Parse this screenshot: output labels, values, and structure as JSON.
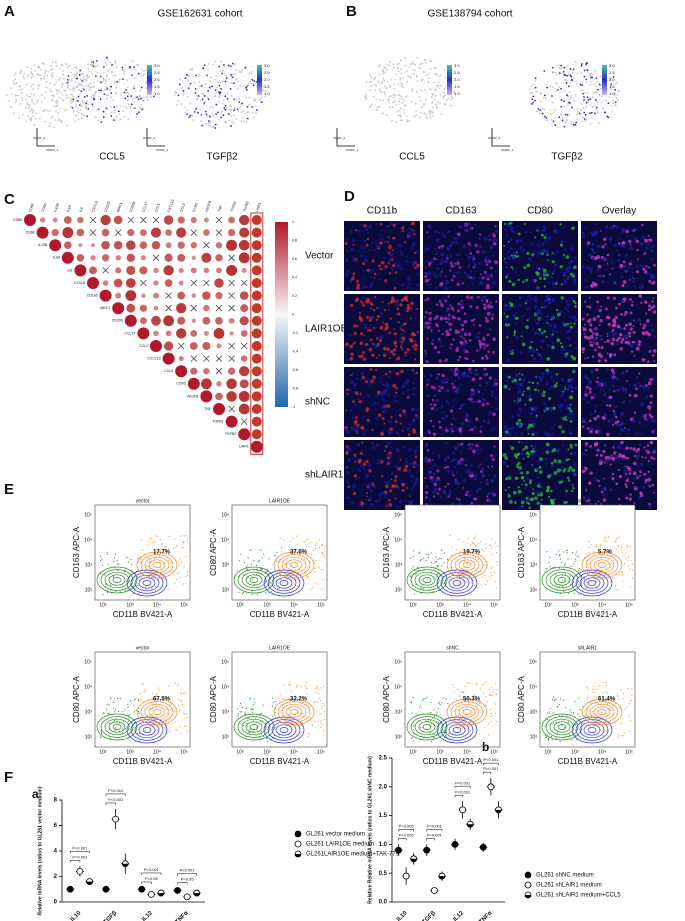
{
  "panels": [
    "A",
    "B",
    "C",
    "D",
    "E",
    "F"
  ],
  "umap": {
    "cohorts": [
      {
        "title": "GSE162631 cohort",
        "genes": [
          "CCL5",
          "TGFβ2"
        ]
      },
      {
        "title": "GSE138794 cohort",
        "genes": [
          "CCL5",
          "TGFβ2"
        ]
      }
    ],
    "scale": [
      "3.0",
      "2.5",
      "2.0",
      "1.5",
      "1.0"
    ],
    "axes": [
      "UMAP_1",
      "UMAP_2"
    ]
  },
  "corr": {
    "genes": [
      "CD86",
      "CD68",
      "IL10B",
      "IL1B",
      "IL6",
      "CXCL8",
      "CD163",
      "MRC1",
      "CD206",
      "CCL17",
      "CCL1",
      "CXCL13",
      "CCL5",
      "CCR5",
      "VEGFB",
      "TNF",
      "TGFB1",
      "TGFB2",
      "LAIR1"
    ],
    "colorbar": [
      "1",
      "0.8",
      "0.6",
      "0.4",
      "0.2",
      "0",
      "-0.2",
      "-0.4",
      "-0.6",
      "-0.8",
      "-1"
    ]
  },
  "if": {
    "columns": [
      "CD11b",
      "CD163",
      "CD80",
      "Overlay"
    ],
    "rows": [
      "Vector",
      "LAIR1OE",
      "shNC",
      "shLAIR1"
    ]
  },
  "flow": {
    "xlabel": "CD11B BV421-A",
    "ticks": [
      "10²",
      "10³",
      "10⁴",
      "10⁵"
    ],
    "plots": [
      {
        "title": "vector",
        "ylabel": "CD163 APC-A",
        "pct": "17.7%"
      },
      {
        "title": "LAIR1OE",
        "ylabel": "CD80 APC-A",
        "pct": "37.6%"
      },
      {
        "title": "shNC",
        "ylabel": "CD163 APC-A",
        "pct": "19.7%"
      },
      {
        "title": "shLAIR1",
        "ylabel": "CD163 APC-A",
        "pct": "5.7%"
      },
      {
        "title": "vector",
        "ylabel": "CD80 APC-A",
        "pct": "67.5%"
      },
      {
        "title": "LAIR1OE",
        "ylabel": "CD80 APC-A",
        "pct": "32.2%"
      },
      {
        "title": "shNC",
        "ylabel": "CD80 APC-A",
        "pct": "50.3%"
      },
      {
        "title": "shLAIR1",
        "ylabel": "CD80 APC-A",
        "pct": "61.4%"
      }
    ]
  },
  "chart_data": [
    {
      "type": "dot",
      "label": "a",
      "ylabel": "Relative mRNA levels (ratios to GL261 vector medium)",
      "categories": [
        "IL10",
        "TGFβ",
        "IL12",
        "TNFα"
      ],
      "series": [
        {
          "name": "GL261 vector medium",
          "marker": "filled",
          "color": "#000000",
          "values": [
            1,
            1,
            1,
            0.9
          ],
          "errors": [
            0.2,
            0.15,
            0.1,
            0.15
          ]
        },
        {
          "name": "GL261 LAIR1OE medium",
          "marker": "open",
          "color": "#000000",
          "values": [
            2.4,
            6.5,
            0.6,
            0.4
          ],
          "errors": [
            0.4,
            0.8,
            0.1,
            0.1
          ]
        },
        {
          "name": "GL261LAIR1OE medium+TAK-779",
          "marker": "half",
          "color": "#000000",
          "values": [
            1.6,
            3,
            0.7,
            0.7
          ],
          "errors": [
            0.2,
            0.8,
            0.1,
            0.1
          ]
        }
      ],
      "ylim": [
        0,
        8
      ],
      "yticks": [
        0,
        2,
        4,
        6,
        8
      ],
      "annotations": [
        "P=0.001",
        "P<0.001",
        "P<0.001",
        "P<0.001",
        "P<0.05",
        "P<0.001",
        "P<0.05",
        "P<0.001"
      ]
    },
    {
      "type": "dot",
      "label": "b",
      "ylabel": "Relative Relative mRNA levels (ratios to GL261 shNC medium)",
      "categories": [
        "IL10",
        "TGFβ",
        "IL12",
        "TNFα"
      ],
      "series": [
        {
          "name": "GL261 shNC medium",
          "marker": "filled",
          "color": "#000000",
          "values": [
            0.9,
            0.9,
            1,
            0.95
          ],
          "errors": [
            0.1,
            0.1,
            0.1,
            0.08
          ]
        },
        {
          "name": "GL261 shLAIR1 medium",
          "marker": "open",
          "color": "#000000",
          "values": [
            0.45,
            0.2,
            1.6,
            2
          ],
          "errors": [
            0.15,
            0.05,
            0.15,
            0.15
          ]
        },
        {
          "name": "GL261 shLAIR1 medium+CCL5",
          "marker": "half",
          "color": "#000000",
          "values": [
            0.75,
            0.45,
            1.35,
            1.6
          ],
          "errors": [
            0.1,
            0.08,
            0.1,
            0.15
          ]
        }
      ],
      "ylim": [
        0,
        2.5
      ],
      "yticks": [
        {
          "value": 0,
          "label": "0.0"
        },
        {
          "value": 0.5,
          "label": "0.5"
        },
        {
          "value": 1,
          "label": "1.0"
        },
        {
          "value": 1.5,
          "label": "1.5"
        },
        {
          "value": 2,
          "label": "2.0"
        },
        {
          "value": 2.5,
          "label": "2.5"
        }
      ],
      "annotations": [
        "P<0.005",
        "P=0.005",
        "P<0.001",
        "P<0.001",
        "P<0.001",
        "P<0.001",
        "P<0.001",
        "P<0.001"
      ]
    }
  ]
}
